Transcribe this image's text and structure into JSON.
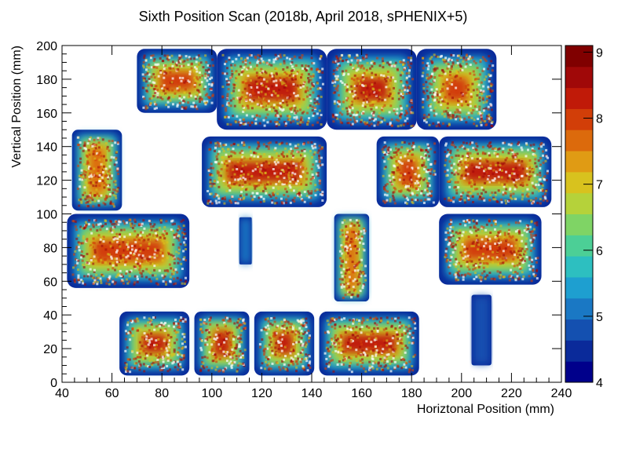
{
  "chart_data": {
    "type": "heatmap",
    "title": "Sixth Position Scan (2018b, April 2018, sPHENIX+5)",
    "xlabel": "Horiztonal Position (mm)",
    "ylabel": "Vertical Position (mm)",
    "xlim": [
      40,
      240
    ],
    "ylim": [
      0,
      200
    ],
    "x_ticks": [
      "40",
      "60",
      "80",
      "100",
      "120",
      "140",
      "160",
      "180",
      "200",
      "220",
      "240"
    ],
    "y_ticks": [
      "0",
      "20",
      "40",
      "60",
      "80",
      "100",
      "120",
      "140",
      "160",
      "180",
      "200"
    ],
    "colorbar": {
      "min": 4,
      "max": 9.1,
      "ticks": [
        "4",
        "5",
        "6",
        "7",
        "8",
        "9"
      ],
      "palette": [
        "#00008b",
        "#0a2a9a",
        "#1450b0",
        "#1a78c4",
        "#1e9fd0",
        "#2dbfc0",
        "#4ccf96",
        "#7fd465",
        "#b5d23a",
        "#d8c21e",
        "#e09b14",
        "#dc6a0c",
        "#d23e08",
        "#c01a08",
        "#a00808",
        "#800000"
      ]
    },
    "cells": [
      {
        "x": [
          63,
          91
        ],
        "y": [
          4,
          42
        ],
        "z": 8.2
      },
      {
        "x": [
          93,
          115
        ],
        "y": [
          4,
          42
        ],
        "z": 8.2
      },
      {
        "x": [
          117,
          141
        ],
        "y": [
          4,
          42
        ],
        "z": 8.4
      },
      {
        "x": [
          143,
          183
        ],
        "y": [
          4,
          42
        ],
        "z": 8.2
      },
      {
        "x": [
          42,
          91
        ],
        "y": [
          56,
          100
        ],
        "z": 8.0
      },
      {
        "x": [
          44,
          64
        ],
        "y": [
          102,
          150
        ],
        "z": 7.6
      },
      {
        "x": [
          149,
          163
        ],
        "y": [
          48,
          100
        ],
        "z": 7.8
      },
      {
        "x": [
          111,
          116
        ],
        "y": [
          70,
          98
        ],
        "z": 5.0
      },
      {
        "x": [
          96,
          146
        ],
        "y": [
          104,
          146
        ],
        "z": 8.2
      },
      {
        "x": [
          166,
          191
        ],
        "y": [
          104,
          146
        ],
        "z": 8.0
      },
      {
        "x": [
          191,
          236
        ],
        "y": [
          104,
          146
        ],
        "z": 8.2
      },
      {
        "x": [
          191,
          232
        ],
        "y": [
          58,
          100
        ],
        "z": 8.0
      },
      {
        "x": [
          204,
          212
        ],
        "y": [
          10,
          52
        ],
        "z": 4.8
      },
      {
        "x": [
          70,
          102
        ],
        "y": [
          160,
          198
        ],
        "z": 8.0
      },
      {
        "x": [
          102,
          146
        ],
        "y": [
          150,
          198
        ],
        "z": 8.2
      },
      {
        "x": [
          146,
          182
        ],
        "y": [
          150,
          198
        ],
        "z": 8.2
      },
      {
        "x": [
          182,
          214
        ],
        "y": [
          150,
          198
        ],
        "z": 8.0
      }
    ]
  }
}
